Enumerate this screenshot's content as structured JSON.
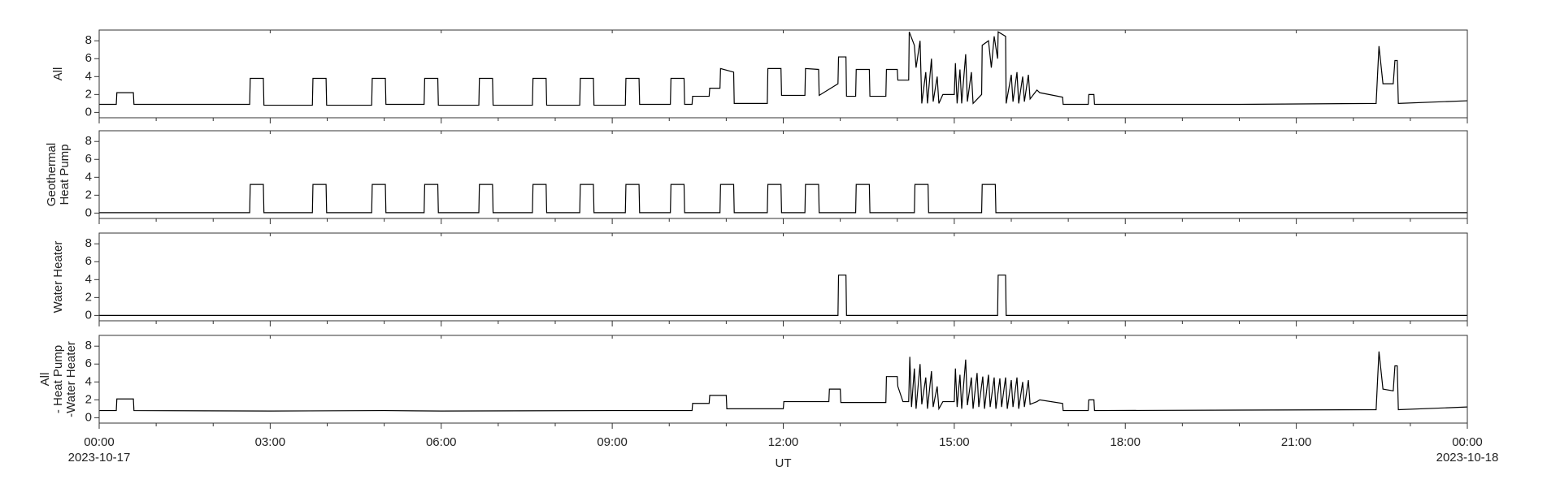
{
  "chart_data": [
    {
      "type": "line",
      "ylabel": [
        "All"
      ],
      "color": "#000000",
      "ylim": [
        -0.6,
        9.2
      ],
      "yticks": [
        0,
        2,
        4,
        6,
        8
      ],
      "x": [
        0,
        0.3,
        0.31,
        0.6,
        0.61,
        2.64,
        2.65,
        2.88,
        2.89,
        3.74,
        3.75,
        3.98,
        3.99,
        4.78,
        4.79,
        5.02,
        5.03,
        5.7,
        5.71,
        5.94,
        5.95,
        6.66,
        6.67,
        6.9,
        6.91,
        7.6,
        7.61,
        7.84,
        7.85,
        8.43,
        8.44,
        8.67,
        8.68,
        9.23,
        9.24,
        9.47,
        9.48,
        10.02,
        10.03,
        10.26,
        10.27,
        10.4,
        10.41,
        10.7,
        10.71,
        10.89,
        10.9,
        11.13,
        11.14,
        11.72,
        11.73,
        11.96,
        11.97,
        12.38,
        12.39,
        12.62,
        12.63,
        12.96,
        12.97,
        13.1,
        13.11,
        13.27,
        13.28,
        13.51,
        13.52,
        13.8,
        13.81,
        14.0,
        14.01,
        14.2,
        14.21,
        14.3,
        14.33,
        14.4,
        14.43,
        14.5,
        14.53,
        14.6,
        14.63,
        14.7,
        14.73,
        14.8,
        15.0,
        15.02,
        15.05,
        15.1,
        15.13,
        15.2,
        15.23,
        15.3,
        15.33,
        15.48,
        15.49,
        15.6,
        15.65,
        15.7,
        15.76,
        15.77,
        15.9,
        15.91,
        16.0,
        16.03,
        16.1,
        16.13,
        16.2,
        16.23,
        16.3,
        16.33,
        16.45,
        16.5,
        16.9,
        16.91,
        17.35,
        17.36,
        17.45,
        17.46,
        20,
        22.4,
        22.45,
        22.52,
        22.7,
        22.73,
        22.77,
        22.79,
        24
      ],
      "values": [
        0.9,
        0.9,
        2.2,
        2.2,
        0.9,
        0.9,
        3.8,
        3.8,
        0.8,
        0.8,
        3.8,
        3.8,
        0.8,
        0.8,
        3.8,
        3.8,
        0.9,
        0.9,
        3.8,
        3.8,
        0.8,
        0.8,
        3.8,
        3.8,
        0.8,
        0.8,
        3.8,
        3.8,
        0.8,
        0.8,
        3.8,
        3.8,
        0.8,
        0.8,
        3.8,
        3.8,
        0.9,
        0.9,
        3.8,
        3.8,
        0.9,
        0.9,
        1.8,
        1.8,
        2.7,
        2.7,
        4.9,
        4.5,
        1.0,
        1.0,
        4.9,
        4.9,
        1.9,
        1.9,
        4.9,
        4.8,
        1.9,
        3.2,
        6.2,
        6.2,
        1.8,
        1.8,
        4.8,
        4.8,
        1.8,
        1.8,
        4.8,
        4.8,
        3.6,
        3.6,
        9.0,
        7.5,
        5.0,
        8.0,
        1.0,
        4.5,
        1.0,
        6.0,
        1.2,
        4.0,
        1.0,
        2.0,
        2.0,
        5.5,
        1.0,
        4.8,
        1.0,
        6.5,
        1.2,
        4.5,
        1.0,
        2.0,
        7.5,
        8.0,
        5.0,
        8.5,
        6.0,
        9.0,
        8.5,
        1.0,
        4.2,
        1.2,
        4.5,
        1.0,
        4.0,
        1.2,
        4.2,
        1.5,
        2.5,
        2.2,
        1.7,
        0.9,
        0.9,
        2.0,
        2.0,
        0.9,
        0.9,
        1.0,
        7.4,
        3.2,
        3.2,
        5.8,
        5.8,
        1.0,
        1.3
      ]
    },
    {
      "type": "line",
      "ylabel": [
        "Geothermal",
        "Heat Pump"
      ],
      "color": "#000000",
      "ylim": [
        -0.6,
        9.2
      ],
      "yticks": [
        0,
        2,
        4,
        6,
        8
      ],
      "x": [
        0,
        2.64,
        2.65,
        2.88,
        2.89,
        3.74,
        3.75,
        3.98,
        3.99,
        4.78,
        4.79,
        5.02,
        5.03,
        5.7,
        5.71,
        5.94,
        5.95,
        6.66,
        6.67,
        6.9,
        6.91,
        7.6,
        7.61,
        7.84,
        7.85,
        8.43,
        8.44,
        8.67,
        8.68,
        9.23,
        9.24,
        9.47,
        9.48,
        10.02,
        10.03,
        10.26,
        10.27,
        10.89,
        10.9,
        11.13,
        11.14,
        11.72,
        11.73,
        11.96,
        11.97,
        12.38,
        12.39,
        12.62,
        12.63,
        13.27,
        13.28,
        13.51,
        13.52,
        14.3,
        14.31,
        14.54,
        14.55,
        15.48,
        15.49,
        15.72,
        15.73,
        24
      ],
      "values": [
        0.05,
        0.05,
        3.2,
        3.2,
        0.05,
        0.05,
        3.2,
        3.2,
        0.05,
        0.05,
        3.2,
        3.2,
        0.05,
        0.05,
        3.2,
        3.2,
        0.05,
        0.05,
        3.2,
        3.2,
        0.05,
        0.05,
        3.2,
        3.2,
        0.05,
        0.05,
        3.2,
        3.2,
        0.05,
        0.05,
        3.2,
        3.2,
        0.05,
        0.05,
        3.2,
        3.2,
        0.05,
        0.05,
        3.2,
        3.2,
        0.05,
        0.05,
        3.2,
        3.2,
        0.05,
        0.05,
        3.2,
        3.2,
        0.05,
        0.05,
        3.2,
        3.2,
        0.05,
        0.05,
        3.2,
        3.2,
        0.05,
        0.05,
        3.2,
        3.2,
        0.05,
        0.05
      ]
    },
    {
      "type": "line",
      "ylabel": [
        "Water Heater"
      ],
      "color": "#000000",
      "ylim": [
        -0.6,
        9.2
      ],
      "yticks": [
        0,
        2,
        4,
        6,
        8
      ],
      "x": [
        0,
        12.96,
        12.97,
        13.1,
        13.11,
        15.76,
        15.77,
        15.9,
        15.91,
        24
      ],
      "values": [
        0,
        0,
        4.5,
        4.5,
        0,
        0,
        4.5,
        4.5,
        0,
        0
      ]
    },
    {
      "type": "line",
      "ylabel": [
        "All",
        "- Heat Pump",
        "-Water Heater"
      ],
      "color": "#000000",
      "ylim": [
        -0.6,
        9.2
      ],
      "yticks": [
        0,
        2,
        4,
        6,
        8
      ],
      "xlabel": "UT",
      "xlim": [
        0,
        24
      ],
      "xticks": [
        {
          "value": 0,
          "label": "00:00"
        },
        {
          "value": 3,
          "label": "03:00"
        },
        {
          "value": 6,
          "label": "06:00"
        },
        {
          "value": 9,
          "label": "09:00"
        },
        {
          "value": 12,
          "label": "12:00"
        },
        {
          "value": 15,
          "label": "15:00"
        },
        {
          "value": 18,
          "label": "18:00"
        },
        {
          "value": 21,
          "label": "21:00"
        },
        {
          "value": 24,
          "label": "00:00"
        }
      ],
      "xminorticks": [
        1,
        2,
        4,
        5,
        7,
        8,
        10,
        11,
        13,
        14,
        16,
        17,
        19,
        20,
        22,
        23
      ],
      "start_date": "2023-10-17",
      "end_date": "2023-10-18",
      "x": [
        0,
        0.3,
        0.31,
        0.6,
        0.61,
        3,
        5,
        6,
        9,
        10.4,
        10.41,
        10.7,
        10.71,
        11.0,
        11.01,
        12.0,
        12.01,
        12.8,
        12.81,
        13.0,
        13.01,
        13.8,
        13.81,
        14.0,
        14.01,
        14.1,
        14.2,
        14.22,
        14.25,
        14.3,
        14.33,
        14.4,
        14.43,
        14.5,
        14.53,
        14.6,
        14.63,
        14.7,
        14.73,
        14.8,
        15.0,
        15.02,
        15.05,
        15.1,
        15.13,
        15.2,
        15.23,
        15.3,
        15.33,
        15.4,
        15.43,
        15.5,
        15.53,
        15.6,
        15.63,
        15.7,
        15.73,
        15.8,
        15.83,
        15.9,
        15.93,
        16.0,
        16.03,
        16.1,
        16.13,
        16.2,
        16.23,
        16.3,
        16.33,
        16.45,
        16.5,
        16.9,
        16.91,
        17.35,
        17.36,
        17.45,
        17.46,
        20,
        22.4,
        22.45,
        22.52,
        22.7,
        22.73,
        22.77,
        22.79,
        24
      ],
      "values": [
        0.8,
        0.8,
        2.1,
        2.1,
        0.8,
        0.75,
        0.8,
        0.75,
        0.8,
        0.8,
        1.6,
        1.6,
        2.5,
        2.5,
        1.0,
        1.0,
        1.8,
        1.8,
        3.2,
        3.2,
        1.7,
        1.7,
        4.6,
        4.6,
        3.5,
        1.8,
        1.8,
        6.8,
        1.2,
        5.5,
        1.0,
        6.0,
        1.5,
        4.5,
        1.0,
        5.2,
        1.2,
        3.5,
        1.0,
        1.8,
        1.8,
        5.5,
        1.2,
        4.8,
        1.0,
        6.5,
        1.4,
        4.5,
        1.0,
        5.0,
        1.2,
        4.6,
        1.0,
        4.8,
        1.2,
        4.5,
        1.0,
        4.4,
        1.2,
        4.5,
        1.0,
        4.2,
        1.2,
        4.5,
        1.0,
        4.0,
        1.2,
        4.2,
        1.5,
        1.8,
        2.0,
        1.6,
        0.8,
        0.8,
        2.0,
        2.0,
        0.8,
        0.85,
        0.9,
        7.4,
        3.2,
        3.0,
        5.8,
        5.8,
        0.9,
        1.2
      ]
    }
  ]
}
